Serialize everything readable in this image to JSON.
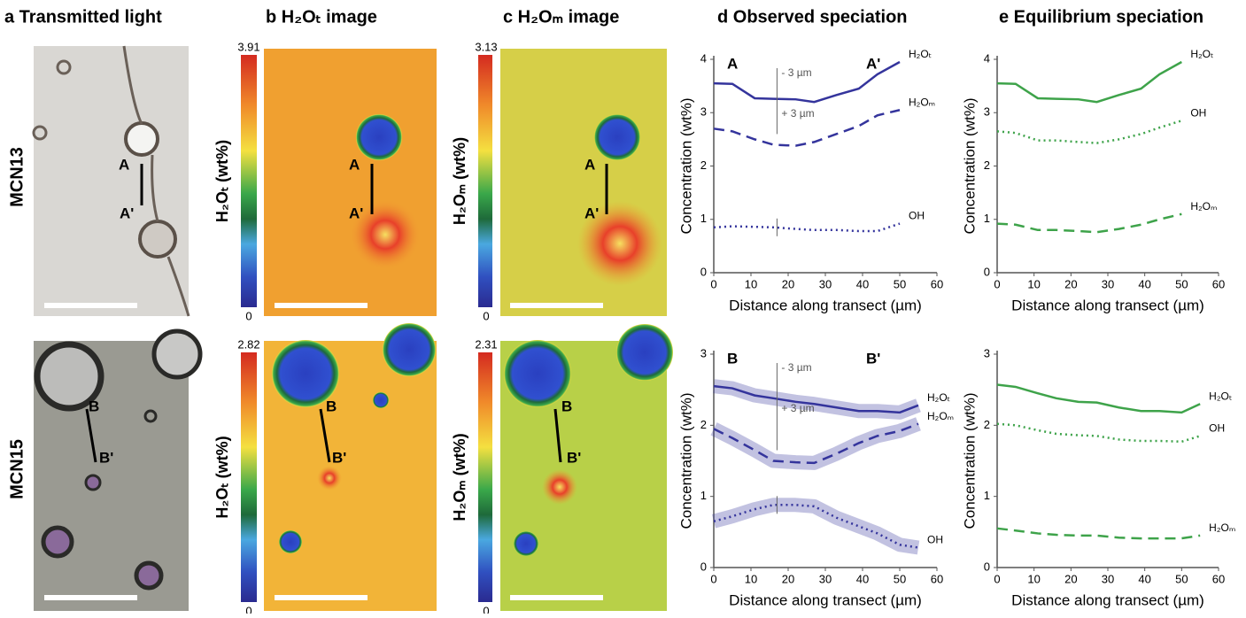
{
  "headers": [
    "a Transmitted light",
    "b H₂Oₜ image",
    "c H₂Oₘ image",
    "d Observed speciation",
    "e Equilibrium speciation"
  ],
  "rows": [
    "MCN13",
    "MCN15"
  ],
  "colorbars": [
    [
      {
        "max": 3.91,
        "min": 0,
        "label": "H₂Oₜ (wt%)"
      },
      {
        "max": 3.13,
        "min": 0,
        "label": "H₂Oₘ (wt%)"
      }
    ],
    [
      {
        "max": 2.82,
        "min": 0,
        "label": "H₂Oₜ (wt%)"
      },
      {
        "max": 2.31,
        "min": 0,
        "label": "H₂Oₘ (wt%)"
      }
    ]
  ],
  "transect_labels": [
    [
      "A",
      "A'"
    ],
    [
      "B",
      "B'"
    ]
  ],
  "chart_data": [
    {
      "type": "line",
      "x_label": "Distance along transect (µm)",
      "y_label": "Concentration (wt%)",
      "annotations": [
        "A",
        "A'",
        "- 3 µm",
        "+ 3 µm"
      ],
      "x": [
        0,
        5,
        11,
        16,
        22,
        27,
        33,
        39,
        44,
        50
      ],
      "xlim": [
        0,
        60
      ],
      "ylim": [
        0,
        4
      ],
      "xticks": [
        0,
        10,
        20,
        30,
        40,
        50,
        60
      ],
      "yticks": [
        0,
        1,
        2,
        3,
        4
      ],
      "series": [
        {
          "name": "H₂Oₜ",
          "color": "#34349c",
          "style": "solid",
          "values": [
            3.55,
            3.54,
            3.27,
            3.26,
            3.25,
            3.2,
            3.33,
            3.45,
            3.72,
            3.95
          ]
        },
        {
          "name": "H₂Oₘ",
          "color": "#34349c",
          "style": "dashed",
          "values": [
            2.7,
            2.65,
            2.5,
            2.4,
            2.38,
            2.45,
            2.6,
            2.75,
            2.95,
            3.05
          ]
        },
        {
          "name": "OH",
          "color": "#34349c",
          "style": "dotted",
          "values": [
            0.85,
            0.87,
            0.86,
            0.85,
            0.82,
            0.8,
            0.8,
            0.78,
            0.78,
            0.92
          ]
        }
      ]
    },
    {
      "type": "line",
      "x_label": "Distance along transect (µm)",
      "y_label": "Concentration (wt%)",
      "x": [
        0,
        5,
        11,
        16,
        22,
        27,
        33,
        39,
        44,
        50
      ],
      "xlim": [
        0,
        60
      ],
      "ylim": [
        0,
        4
      ],
      "xticks": [
        0,
        10,
        20,
        30,
        40,
        50,
        60
      ],
      "yticks": [
        0,
        1,
        2,
        3,
        4
      ],
      "series": [
        {
          "name": "H₂Oₜ",
          "color": "#3ea34a",
          "style": "solid",
          "values": [
            3.55,
            3.54,
            3.27,
            3.26,
            3.25,
            3.2,
            3.33,
            3.45,
            3.72,
            3.95
          ]
        },
        {
          "name": "OH",
          "color": "#3ea34a",
          "style": "dotted",
          "values": [
            2.65,
            2.62,
            2.48,
            2.48,
            2.45,
            2.43,
            2.5,
            2.6,
            2.72,
            2.85
          ]
        },
        {
          "name": "H₂Oₘ",
          "color": "#3ea34a",
          "style": "dashed",
          "values": [
            0.92,
            0.9,
            0.8,
            0.8,
            0.78,
            0.76,
            0.82,
            0.9,
            1.0,
            1.1
          ]
        }
      ]
    },
    {
      "type": "line",
      "x_label": "Distance along transect (µm)",
      "y_label": "Concentration (wt%)",
      "annotations": [
        "B",
        "B'",
        "- 3 µm",
        "+ 3 µm"
      ],
      "x": [
        0,
        5,
        11,
        16,
        22,
        27,
        33,
        39,
        44,
        50,
        55
      ],
      "xlim": [
        0,
        60
      ],
      "ylim": [
        0,
        3
      ],
      "xticks": [
        0,
        10,
        20,
        30,
        40,
        50,
        60
      ],
      "yticks": [
        0,
        1,
        2,
        3
      ],
      "band": true,
      "series": [
        {
          "name": "H₂Oₜ",
          "color": "#34349c",
          "style": "solid",
          "values": [
            2.55,
            2.52,
            2.42,
            2.38,
            2.33,
            2.3,
            2.25,
            2.2,
            2.2,
            2.18,
            2.28
          ]
        },
        {
          "name": "H₂Oₘ",
          "color": "#34349c",
          "style": "dashed",
          "values": [
            1.95,
            1.82,
            1.65,
            1.5,
            1.48,
            1.47,
            1.6,
            1.75,
            1.85,
            1.92,
            2.02
          ]
        },
        {
          "name": "OH",
          "color": "#34349c",
          "style": "dotted",
          "values": [
            0.65,
            0.72,
            0.82,
            0.88,
            0.88,
            0.86,
            0.7,
            0.58,
            0.48,
            0.32,
            0.28
          ]
        }
      ]
    },
    {
      "type": "line",
      "x_label": "Distance along transect (µm)",
      "y_label": "Concentration (wt%)",
      "x": [
        0,
        5,
        11,
        16,
        22,
        27,
        33,
        39,
        44,
        50,
        55
      ],
      "xlim": [
        0,
        60
      ],
      "ylim": [
        0,
        3
      ],
      "xticks": [
        0,
        10,
        20,
        30,
        40,
        50,
        60
      ],
      "yticks": [
        0,
        1,
        2,
        3
      ],
      "series": [
        {
          "name": "H₂Oₜ",
          "color": "#3ea34a",
          "style": "solid",
          "values": [
            2.57,
            2.54,
            2.45,
            2.38,
            2.33,
            2.32,
            2.25,
            2.2,
            2.2,
            2.18,
            2.3
          ]
        },
        {
          "name": "OH",
          "color": "#3ea34a",
          "style": "dotted",
          "values": [
            2.02,
            2.0,
            1.93,
            1.88,
            1.86,
            1.85,
            1.8,
            1.78,
            1.78,
            1.77,
            1.85
          ]
        },
        {
          "name": "H₂Oₘ",
          "color": "#3ea34a",
          "style": "dashed",
          "values": [
            0.55,
            0.52,
            0.48,
            0.46,
            0.45,
            0.45,
            0.42,
            0.41,
            0.41,
            0.41,
            0.45
          ]
        }
      ]
    }
  ]
}
